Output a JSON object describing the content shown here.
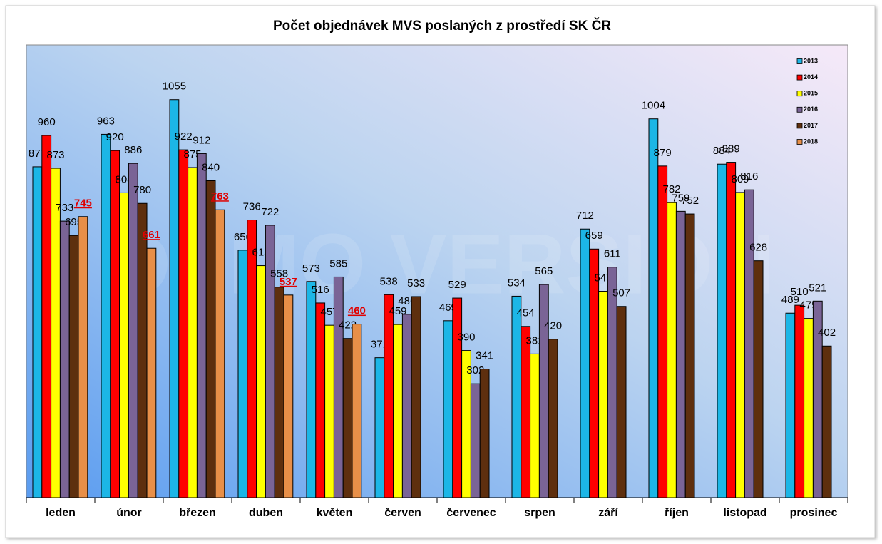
{
  "chart_data": {
    "type": "bar",
    "title": "Počet objednávek MVS poslaných z prostředí SK ČR",
    "watermark": "DEMO VERSION",
    "categories": [
      "leden",
      "únor",
      "březen",
      "duben",
      "květen",
      "červen",
      "červenec",
      "srpen",
      "září",
      "říjen",
      "listopad",
      "prosinec"
    ],
    "series": [
      {
        "name": "2013",
        "color": "#1cb6e6",
        "values": [
          877,
          963,
          1055,
          656,
          573,
          371,
          469,
          534,
          712,
          1004,
          884,
          489
        ]
      },
      {
        "name": "2014",
        "color": "#ff0000",
        "values": [
          960,
          920,
          922,
          736,
          516,
          538,
          529,
          454,
          659,
          879,
          889,
          510
        ]
      },
      {
        "name": "2015",
        "color": "#ffff00",
        "values": [
          873,
          808,
          875,
          615,
          457,
          459,
          390,
          381,
          547,
          782,
          809,
          475
        ]
      },
      {
        "name": "2016",
        "color": "#7a6496",
        "values": [
          733,
          886,
          912,
          722,
          585,
          486,
          302,
          565,
          611,
          759,
          816,
          521
        ]
      },
      {
        "name": "2017",
        "color": "#5e2f0e",
        "values": [
          695,
          780,
          840,
          558,
          422,
          533,
          341,
          420,
          507,
          752,
          628,
          402
        ]
      },
      {
        "name": "2018",
        "color": "#e88f48",
        "values": [
          745,
          661,
          763,
          537,
          460,
          null,
          null,
          null,
          null,
          null,
          null,
          null
        ]
      }
    ],
    "ylim": [
      0,
      1200
    ],
    "legend": "top-right"
  }
}
